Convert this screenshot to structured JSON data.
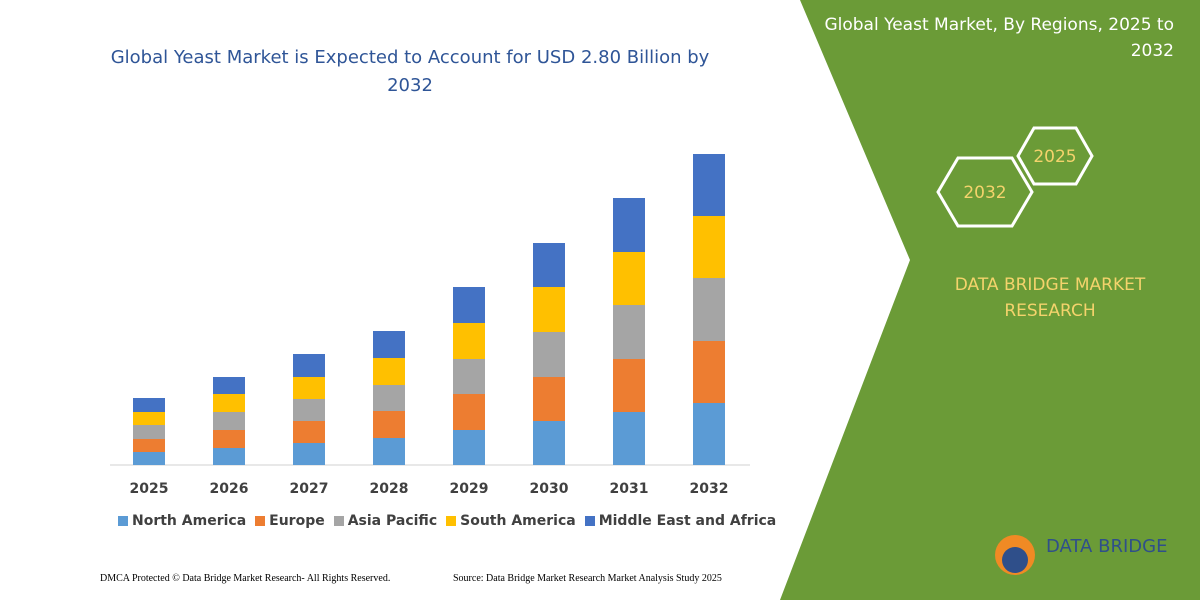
{
  "chart_data": {
    "type": "stacked-bar",
    "title": "Global Yeast Market is Expected to Account for USD 2.80 Billion by 2032",
    "categories": [
      "2025",
      "2026",
      "2027",
      "2028",
      "2029",
      "2030",
      "2031",
      "2032"
    ],
    "series": [
      {
        "name": "North America",
        "color": "#5b9bd5",
        "values": [
          13,
          17,
          22,
          27,
          35,
          44,
          53,
          62
        ]
      },
      {
        "name": "Europe",
        "color": "#ed7d31",
        "values": [
          13,
          18,
          22,
          27,
          36,
          44,
          53,
          62
        ]
      },
      {
        "name": "Asia Pacific",
        "color": "#a5a5a5",
        "values": [
          14,
          18,
          22,
          26,
          35,
          45,
          54,
          63
        ]
      },
      {
        "name": "South America",
        "color": "#ffc000",
        "values": [
          13,
          18,
          22,
          27,
          36,
          45,
          53,
          62
        ]
      },
      {
        "name": "Middle East and Africa",
        "color": "#4472c4",
        "values": [
          14,
          17,
          23,
          27,
          36,
          44,
          54,
          62
        ]
      }
    ]
  },
  "panel": {
    "title": "Global Yeast Market, By Regions, 2025 to 2032",
    "hex_start": "2025",
    "hex_end": "2032",
    "brand": "DATA BRIDGE MARKET RESEARCH",
    "logo": "DATA BRIDGE"
  },
  "footer": {
    "left": "DMCA Protected © Data Bridge Market Research- All Rights Reserved.",
    "right": "Source: Data Bridge Market Research Market Analysis Study 2025"
  }
}
